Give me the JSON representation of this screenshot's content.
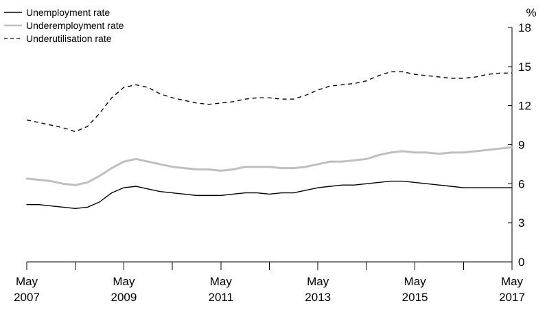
{
  "chart_data": {
    "type": "line",
    "title": "",
    "xlabel": "",
    "ylabel": "%",
    "ylim": [
      0,
      18
    ],
    "yticks": [
      "0",
      "3",
      "6",
      "9",
      "12",
      "15",
      "18"
    ],
    "x_range": [
      "2007-05",
      "2017-05"
    ],
    "x_tick_labels": [
      {
        "month": "May",
        "year": "2007"
      },
      {
        "month": "May",
        "year": "2009"
      },
      {
        "month": "May",
        "year": "2011"
      },
      {
        "month": "May",
        "year": "2013"
      },
      {
        "month": "May",
        "year": "2015"
      },
      {
        "month": "May",
        "year": "2017"
      }
    ],
    "grid": false,
    "legend_position": "top-left",
    "x": [
      "2007-05",
      "2007-08",
      "2007-11",
      "2008-02",
      "2008-05",
      "2008-08",
      "2008-11",
      "2009-02",
      "2009-05",
      "2009-08",
      "2009-11",
      "2010-02",
      "2010-05",
      "2010-08",
      "2010-11",
      "2011-02",
      "2011-05",
      "2011-08",
      "2011-11",
      "2012-02",
      "2012-05",
      "2012-08",
      "2012-11",
      "2013-02",
      "2013-05",
      "2013-08",
      "2013-11",
      "2014-02",
      "2014-05",
      "2014-08",
      "2014-11",
      "2015-02",
      "2015-05",
      "2015-08",
      "2015-11",
      "2016-02",
      "2016-05",
      "2016-08",
      "2016-11",
      "2017-02",
      "2017-05"
    ],
    "series": [
      {
        "name": "Unemployment rate",
        "color": "#000000",
        "style": "solid",
        "values": [
          4.4,
          4.4,
          4.3,
          4.2,
          4.1,
          4.2,
          4.6,
          5.3,
          5.7,
          5.8,
          5.6,
          5.4,
          5.3,
          5.2,
          5.1,
          5.1,
          5.1,
          5.2,
          5.3,
          5.3,
          5.2,
          5.3,
          5.3,
          5.5,
          5.7,
          5.8,
          5.9,
          5.9,
          6.0,
          6.1,
          6.2,
          6.2,
          6.1,
          6.0,
          5.9,
          5.8,
          5.7,
          5.7,
          5.7,
          5.7,
          5.7
        ]
      },
      {
        "name": "Underemployment rate",
        "color": "#bfbfbf",
        "style": "solid",
        "values": [
          6.4,
          6.3,
          6.2,
          6.0,
          5.9,
          6.1,
          6.6,
          7.2,
          7.7,
          7.9,
          7.7,
          7.5,
          7.3,
          7.2,
          7.1,
          7.1,
          7.0,
          7.1,
          7.3,
          7.3,
          7.3,
          7.2,
          7.2,
          7.3,
          7.5,
          7.7,
          7.7,
          7.8,
          7.9,
          8.2,
          8.4,
          8.5,
          8.4,
          8.4,
          8.3,
          8.4,
          8.4,
          8.5,
          8.6,
          8.7,
          8.8
        ]
      },
      {
        "name": "Underutilisation rate",
        "color": "#000000",
        "style": "dashed",
        "values": [
          10.9,
          10.7,
          10.5,
          10.3,
          10.0,
          10.4,
          11.4,
          12.6,
          13.4,
          13.6,
          13.4,
          12.9,
          12.6,
          12.4,
          12.2,
          12.1,
          12.2,
          12.3,
          12.5,
          12.6,
          12.6,
          12.5,
          12.5,
          12.8,
          13.2,
          13.5,
          13.6,
          13.7,
          13.9,
          14.3,
          14.6,
          14.6,
          14.4,
          14.3,
          14.2,
          14.1,
          14.1,
          14.2,
          14.4,
          14.5,
          14.5
        ]
      }
    ]
  }
}
